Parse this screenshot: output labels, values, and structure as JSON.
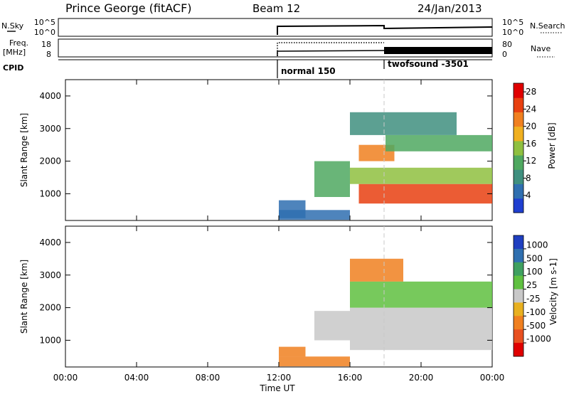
{
  "header": {
    "radar": "Prince George (fitACF)",
    "beam": "Beam 12",
    "date": "24/Jan/2013"
  },
  "strip_panels": {
    "nsky": {
      "label": "N.Sky",
      "y_ticks": [
        "10^5",
        "10^0"
      ],
      "right_label": "N.Search",
      "right_ticks": [
        "10^5",
        "10^0"
      ]
    },
    "freq": {
      "label_top": "Freq.",
      "label_bottom": "[MHz]",
      "y_ticks": [
        "18",
        "8"
      ],
      "right_label": "Nave",
      "right_ticks": [
        "80",
        "0"
      ]
    },
    "cpid": {
      "label": "CPID",
      "segments": [
        "normal 150",
        "twofsound -3501"
      ]
    }
  },
  "colors": {
    "power_scale": [
      "#1f3fd0",
      "#2f6fb0",
      "#3f8f7f",
      "#4fa860",
      "#8fc040",
      "#f0b020",
      "#f08020",
      "#e84010",
      "#e00000"
    ],
    "velocity_scale": [
      "#1f3fc0",
      "#3070b0",
      "#3fa060",
      "#5fc040",
      "#c8c8c8",
      "#e8b020",
      "#f08020",
      "#e85020",
      "#e00000"
    ]
  },
  "chart_data": [
    {
      "type": "heatmap",
      "title": "",
      "xlabel": "Time UT",
      "ylabel": "Slant Range [km]",
      "x_ticks": [
        "00:00",
        "04:00",
        "08:00",
        "12:00",
        "16:00",
        "20:00",
        "00:00"
      ],
      "y_ticks": [
        "1000",
        "2000",
        "3000",
        "4000"
      ],
      "ylim": [
        180,
        4500
      ],
      "colorbar": {
        "label": "Power [dB]",
        "ticks": [
          "4",
          "8",
          "12",
          "16",
          "20",
          "24",
          "28"
        ],
        "range": [
          0,
          30
        ]
      },
      "regions": [
        {
          "t_start": 12.0,
          "t_end": 13.5,
          "r_start": 250,
          "r_end": 800,
          "value": 4
        },
        {
          "t_start": 12.0,
          "t_end": 16.0,
          "r_start": 200,
          "r_end": 500,
          "value": 6
        },
        {
          "t_start": 14.0,
          "t_end": 16.0,
          "r_start": 900,
          "r_end": 2000,
          "value": 10
        },
        {
          "t_start": 16.5,
          "t_end": 24.0,
          "r_start": 700,
          "r_end": 1300,
          "value": 24
        },
        {
          "t_start": 16.0,
          "t_end": 24.0,
          "r_start": 1300,
          "r_end": 1800,
          "value": 14
        },
        {
          "t_start": 16.5,
          "t_end": 18.5,
          "r_start": 2000,
          "r_end": 2500,
          "value": 22
        },
        {
          "t_start": 18.0,
          "t_end": 24.0,
          "r_start": 2300,
          "r_end": 2800,
          "value": 12
        },
        {
          "t_start": 16.0,
          "t_end": 22.0,
          "r_start": 2800,
          "r_end": 3500,
          "value": 8
        }
      ]
    },
    {
      "type": "heatmap",
      "title": "",
      "xlabel": "Time UT",
      "ylabel": "Slant Range [km]",
      "x_ticks": [
        "00:00",
        "04:00",
        "08:00",
        "12:00",
        "16:00",
        "20:00",
        "00:00"
      ],
      "y_ticks": [
        "1000",
        "2000",
        "3000",
        "4000"
      ],
      "ylim": [
        180,
        4500
      ],
      "colorbar": {
        "label": "Velocity [m s-1]",
        "ticks": [
          "1000",
          "500",
          "100",
          "25",
          "-25",
          "-100",
          "-500",
          "-1000"
        ]
      },
      "regions": [
        {
          "t_start": 12.0,
          "t_end": 13.5,
          "r_start": 500,
          "r_end": 800,
          "value": -150
        },
        {
          "t_start": 12.0,
          "t_end": 16.0,
          "r_start": 200,
          "r_end": 500,
          "value": -100
        },
        {
          "t_start": 14.0,
          "t_end": 16.0,
          "r_start": 1000,
          "r_end": 1900,
          "value": 0
        },
        {
          "t_start": 16.0,
          "t_end": 24.0,
          "r_start": 700,
          "r_end": 2000,
          "value": 0
        },
        {
          "t_start": 16.0,
          "t_end": 24.0,
          "r_start": 2000,
          "r_end": 2800,
          "value": 80
        },
        {
          "t_start": 16.0,
          "t_end": 19.0,
          "r_start": 2800,
          "r_end": 3500,
          "value": -300
        }
      ]
    }
  ]
}
